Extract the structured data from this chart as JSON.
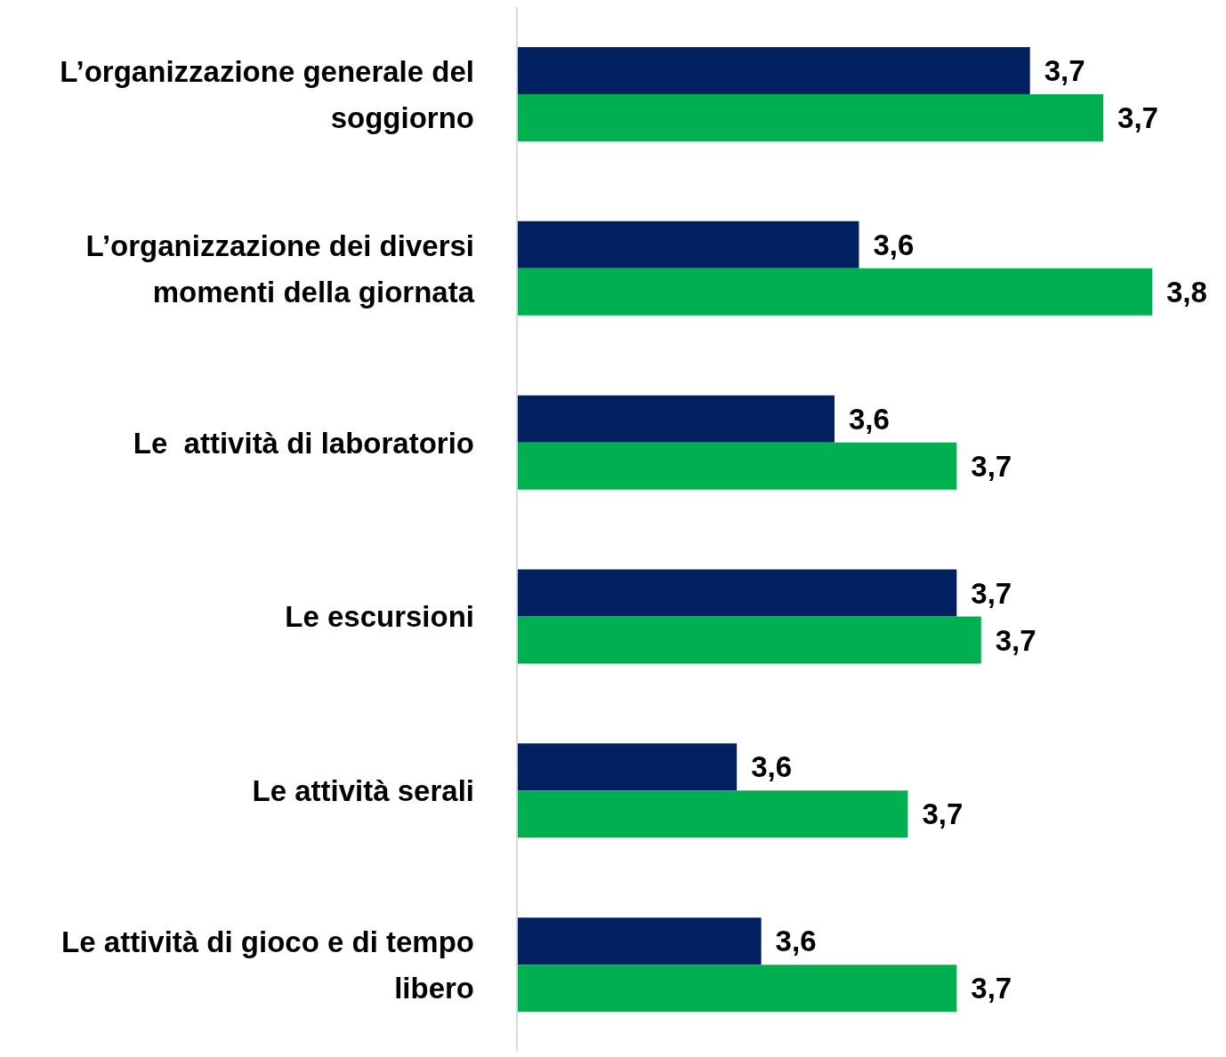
{
  "chart_data": {
    "type": "bar",
    "orientation": "horizontal",
    "categories": [
      "L’organizzazione generale del soggiorno",
      "L’organizzazione dei diversi momenti della giornata",
      "Le  attività di laboratorio",
      "Le escursioni",
      "Le attività serali",
      "Le attività di gioco e di tempo libero"
    ],
    "series": [
      {
        "color": "#002060",
        "values": [
          3.71,
          3.64,
          3.63,
          3.68,
          3.59,
          3.6
        ],
        "value_labels": [
          "3,7",
          "3,6",
          "3,6",
          "3,7",
          "3,6",
          "3,6"
        ]
      },
      {
        "color": "#00b050",
        "values": [
          3.74,
          3.76,
          3.68,
          3.69,
          3.66,
          3.68
        ],
        "value_labels": [
          "3,7",
          "3,8",
          "3,7",
          "3,7",
          "3,7",
          "3,7"
        ]
      }
    ],
    "xlim": [
      3.5,
      3.76
    ],
    "tick_labels": "y",
    "grid": false,
    "legend": false
  }
}
